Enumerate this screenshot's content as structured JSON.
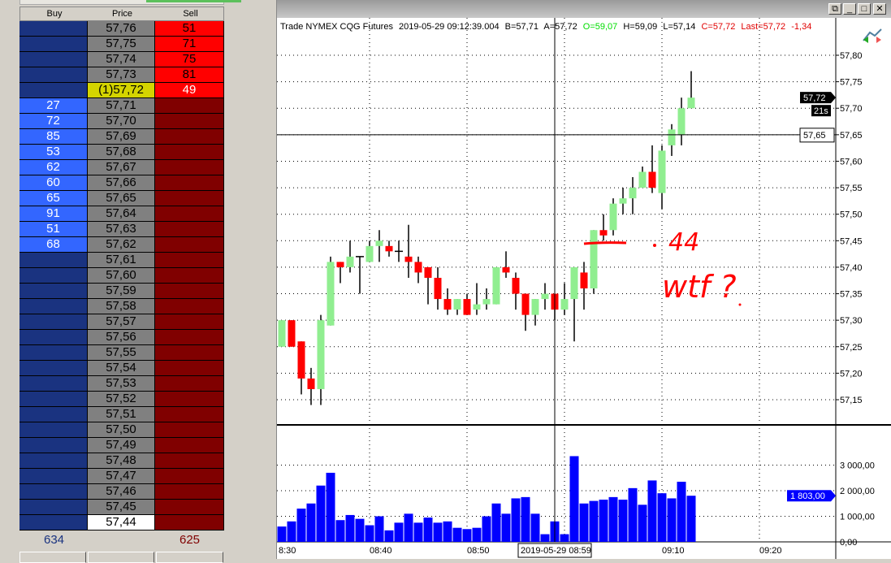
{
  "ladder": {
    "headers": {
      "buy": "Buy",
      "price": "Price",
      "sell": "Sell"
    },
    "rows": [
      {
        "buy": "",
        "price": "57,76",
        "sell": "51"
      },
      {
        "buy": "",
        "price": "57,75",
        "sell": "71"
      },
      {
        "buy": "",
        "price": "57,74",
        "sell": "75"
      },
      {
        "buy": "",
        "price": "57,73",
        "sell": "81"
      },
      {
        "buy": "",
        "price": "(1)57,72",
        "sell": "49",
        "current": true
      },
      {
        "buy": "27",
        "price": "57,71",
        "sell": ""
      },
      {
        "buy": "72",
        "price": "57,70",
        "sell": ""
      },
      {
        "buy": "85",
        "price": "57,69",
        "sell": ""
      },
      {
        "buy": "53",
        "price": "57,68",
        "sell": ""
      },
      {
        "buy": "62",
        "price": "57,67",
        "sell": ""
      },
      {
        "buy": "60",
        "price": "57,66",
        "sell": ""
      },
      {
        "buy": "65",
        "price": "57,65",
        "sell": ""
      },
      {
        "buy": "91",
        "price": "57,64",
        "sell": ""
      },
      {
        "buy": "51",
        "price": "57,63",
        "sell": ""
      },
      {
        "buy": "68",
        "price": "57,62",
        "sell": ""
      },
      {
        "buy": "",
        "price": "57,61",
        "sell": ""
      },
      {
        "buy": "",
        "price": "57,60",
        "sell": ""
      },
      {
        "buy": "",
        "price": "57,59",
        "sell": ""
      },
      {
        "buy": "",
        "price": "57,58",
        "sell": ""
      },
      {
        "buy": "",
        "price": "57,57",
        "sell": ""
      },
      {
        "buy": "",
        "price": "57,56",
        "sell": ""
      },
      {
        "buy": "",
        "price": "57,55",
        "sell": ""
      },
      {
        "buy": "",
        "price": "57,54",
        "sell": ""
      },
      {
        "buy": "",
        "price": "57,53",
        "sell": ""
      },
      {
        "buy": "",
        "price": "57,52",
        "sell": ""
      },
      {
        "buy": "",
        "price": "57,51",
        "sell": ""
      },
      {
        "buy": "",
        "price": "57,50",
        "sell": ""
      },
      {
        "buy": "",
        "price": "57,49",
        "sell": ""
      },
      {
        "buy": "",
        "price": "57,48",
        "sell": ""
      },
      {
        "buy": "",
        "price": "57,47",
        "sell": ""
      },
      {
        "buy": "",
        "price": "57,46",
        "sell": ""
      },
      {
        "buy": "",
        "price": "57,45",
        "sell": ""
      },
      {
        "buy": "",
        "price": "57,44",
        "sell": "",
        "last": true
      }
    ],
    "total_buy": "634",
    "total_sell": "625"
  },
  "colors": {
    "buy_dark": "#1a3380",
    "buy_active": "#3366ff",
    "sell_dark": "#800000",
    "sell_active": "#ff0000",
    "up": "#90ee90",
    "down": "#ff0000",
    "volume": "#0000ff",
    "annotation": "#ff0000"
  },
  "chart": {
    "info": {
      "prefix": "Trade NYMEX CQG Futures",
      "datetime": "2019-05-29 09:12:39.004",
      "bid": "B=57,71",
      "ask": "A=57,72",
      "open": "O=59,07",
      "high": "H=59,09",
      "low": "L=57,14",
      "close": "C=57,72",
      "last": "Last=57,72",
      "change": "-1,34"
    },
    "last_price_label": "57,72",
    "countdown": "21s",
    "crosshair_price": "57,65",
    "crosshair_time": "2019-05-29 08:59",
    "volume_last_label": "1 803,00",
    "handwriting": [
      "44",
      "wtf ?"
    ],
    "window_buttons": [
      "restore",
      "minimize",
      "maximize",
      "close"
    ]
  },
  "chart_data": {
    "type": "candlestick",
    "price_ticks": [
      "57,80",
      "57,75",
      "57,70",
      "57,65",
      "57,60",
      "57,55",
      "57,50",
      "57,45",
      "57,40",
      "57,35",
      "57,30",
      "57,25",
      "57,20",
      "57,15"
    ],
    "ylim": [
      57.14,
      57.82
    ],
    "volume_ticks": [
      "3 000,00",
      "2 000,00",
      "1 000,00",
      "0,00"
    ],
    "time_ticks": [
      "8:30",
      "08:40",
      "08:50",
      "09:10",
      "09:20"
    ],
    "grid": true,
    "candles": [
      {
        "t": "08:31",
        "o": 57.25,
        "h": 57.3,
        "l": 57.25,
        "c": 57.3,
        "v": 600
      },
      {
        "t": "08:32",
        "o": 57.3,
        "h": 57.3,
        "l": 57.25,
        "c": 57.25,
        "v": 800
      },
      {
        "t": "08:33",
        "o": 57.26,
        "h": 57.26,
        "l": 57.16,
        "c": 57.19,
        "v": 1300
      },
      {
        "t": "08:34",
        "o": 57.19,
        "h": 57.21,
        "l": 57.14,
        "c": 57.17,
        "v": 1500
      },
      {
        "t": "08:35",
        "o": 57.17,
        "h": 57.31,
        "l": 57.14,
        "c": 57.3,
        "v": 2200
      },
      {
        "t": "08:36",
        "o": 57.29,
        "h": 57.42,
        "l": 57.29,
        "c": 57.41,
        "v": 2700
      },
      {
        "t": "08:37",
        "o": 57.41,
        "h": 57.41,
        "l": 57.37,
        "c": 57.4,
        "v": 850
      },
      {
        "t": "08:38",
        "o": 57.4,
        "h": 57.45,
        "l": 57.39,
        "c": 57.42,
        "v": 1050
      },
      {
        "t": "08:39",
        "o": 57.42,
        "h": 57.42,
        "l": 57.35,
        "c": 57.42,
        "v": 900
      },
      {
        "t": "08:40",
        "o": 57.41,
        "h": 57.45,
        "l": 57.41,
        "c": 57.44,
        "v": 650
      },
      {
        "t": "08:41",
        "o": 57.44,
        "h": 57.47,
        "l": 57.41,
        "c": 57.45,
        "v": 1000
      },
      {
        "t": "08:42",
        "o": 57.44,
        "h": 57.45,
        "l": 57.42,
        "c": 57.43,
        "v": 450
      },
      {
        "t": "08:43",
        "o": 57.43,
        "h": 57.45,
        "l": 57.41,
        "c": 57.43,
        "v": 750
      },
      {
        "t": "08:44",
        "o": 57.42,
        "h": 57.48,
        "l": 57.38,
        "c": 57.41,
        "v": 1100
      },
      {
        "t": "08:45",
        "o": 57.41,
        "h": 57.42,
        "l": 57.37,
        "c": 57.39,
        "v": 750
      },
      {
        "t": "08:46",
        "o": 57.4,
        "h": 57.4,
        "l": 57.33,
        "c": 57.38,
        "v": 950
      },
      {
        "t": "08:47",
        "o": 57.38,
        "h": 57.4,
        "l": 57.32,
        "c": 57.34,
        "v": 750
      },
      {
        "t": "08:48",
        "o": 57.34,
        "h": 57.36,
        "l": 57.31,
        "c": 57.32,
        "v": 800
      },
      {
        "t": "08:49",
        "o": 57.32,
        "h": 57.34,
        "l": 57.31,
        "c": 57.34,
        "v": 550
      },
      {
        "t": "08:50",
        "o": 57.34,
        "h": 57.35,
        "l": 57.31,
        "c": 57.31,
        "v": 500
      },
      {
        "t": "08:51",
        "o": 57.32,
        "h": 57.37,
        "l": 57.31,
        "c": 57.33,
        "v": 550
      },
      {
        "t": "08:52",
        "o": 57.33,
        "h": 57.36,
        "l": 57.32,
        "c": 57.34,
        "v": 1000
      },
      {
        "t": "08:53",
        "o": 57.33,
        "h": 57.4,
        "l": 57.33,
        "c": 57.4,
        "v": 1500
      },
      {
        "t": "08:54",
        "o": 57.4,
        "h": 57.43,
        "l": 57.38,
        "c": 57.39,
        "v": 1100
      },
      {
        "t": "08:55",
        "o": 57.38,
        "h": 57.39,
        "l": 57.32,
        "c": 57.35,
        "v": 1700
      },
      {
        "t": "08:56",
        "o": 57.35,
        "h": 57.35,
        "l": 57.28,
        "c": 57.31,
        "v": 1750
      },
      {
        "t": "08:57",
        "o": 57.31,
        "h": 57.34,
        "l": 57.29,
        "c": 57.34,
        "v": 1100
      },
      {
        "t": "08:58",
        "o": 57.34,
        "h": 57.37,
        "l": 57.32,
        "c": 57.35,
        "v": 300
      },
      {
        "t": "08:59",
        "o": 57.35,
        "h": 57.35,
        "l": 57.3,
        "c": 57.32,
        "v": 800
      },
      {
        "t": "09:00",
        "o": 57.32,
        "h": 57.37,
        "l": 57.31,
        "c": 57.34,
        "v": 300
      },
      {
        "t": "09:01",
        "o": 57.34,
        "h": 57.4,
        "l": 57.26,
        "c": 57.4,
        "v": 3350
      },
      {
        "t": "09:02",
        "o": 57.39,
        "h": 57.41,
        "l": 57.32,
        "c": 57.36,
        "v": 1500
      },
      {
        "t": "09:03",
        "o": 57.36,
        "h": 57.47,
        "l": 57.35,
        "c": 57.47,
        "v": 1600
      },
      {
        "t": "09:04",
        "o": 57.47,
        "h": 57.5,
        "l": 57.45,
        "c": 57.46,
        "v": 1650
      },
      {
        "t": "09:05",
        "o": 57.47,
        "h": 57.53,
        "l": 57.46,
        "c": 57.52,
        "v": 1750
      },
      {
        "t": "09:06",
        "o": 57.52,
        "h": 57.55,
        "l": 57.5,
        "c": 57.53,
        "v": 1650
      },
      {
        "t": "09:07",
        "o": 57.53,
        "h": 57.57,
        "l": 57.5,
        "c": 57.55,
        "v": 2100
      },
      {
        "t": "09:08",
        "o": 57.55,
        "h": 57.59,
        "l": 57.55,
        "c": 57.58,
        "v": 1450
      },
      {
        "t": "09:09",
        "o": 57.58,
        "h": 57.63,
        "l": 57.54,
        "c": 57.55,
        "v": 2400
      },
      {
        "t": "09:10",
        "o": 57.54,
        "h": 57.63,
        "l": 57.51,
        "c": 57.62,
        "v": 1900
      },
      {
        "t": "09:11",
        "o": 57.63,
        "h": 57.67,
        "l": 57.61,
        "c": 57.66,
        "v": 1700
      },
      {
        "t": "09:12",
        "o": 57.65,
        "h": 57.72,
        "l": 57.63,
        "c": 57.7,
        "v": 2350
      },
      {
        "t": "09:13",
        "o": 57.7,
        "h": 57.77,
        "l": 57.7,
        "c": 57.72,
        "v": 1803
      }
    ]
  }
}
